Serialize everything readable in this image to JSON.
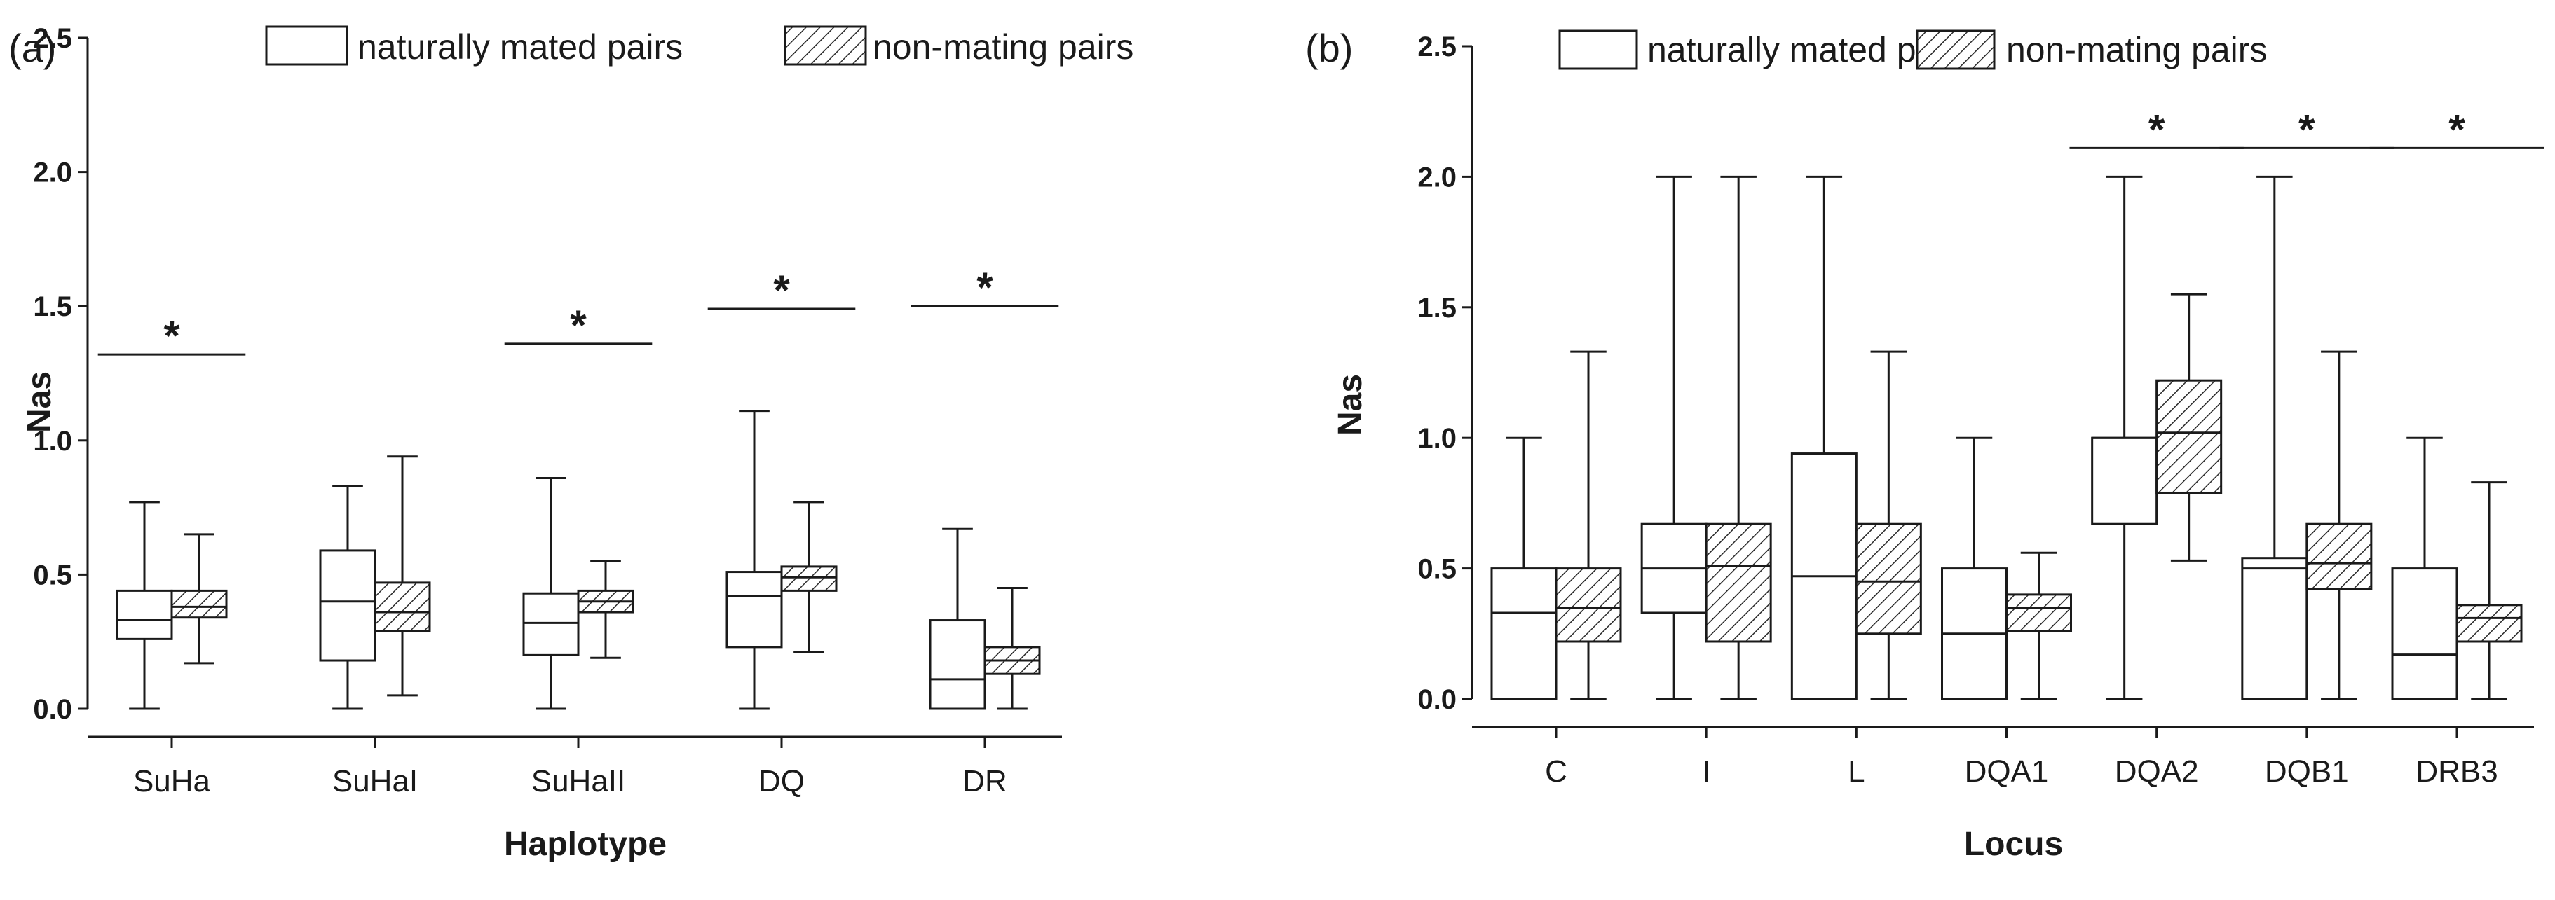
{
  "chart_data": [
    {
      "type": "boxplot",
      "panel_label": "(a)",
      "title": "",
      "xlabel": "Haplotype",
      "ylabel": "Nas",
      "ylim": [
        0,
        2.5
      ],
      "yticks": [
        "0.0",
        "0.5",
        "1.0",
        "1.5",
        "2.0",
        "2.5"
      ],
      "yticks_values": [
        0,
        0.5,
        1.0,
        1.5,
        2.0,
        2.5
      ],
      "legend": [
        "naturally mated pairs",
        "non-mating pairs"
      ],
      "categories": [
        "SuHa",
        "SuHaI",
        "SuHaII",
        "DQ",
        "DR"
      ],
      "series": [
        {
          "name": "naturally mated pairs",
          "pattern": "open",
          "boxes": [
            {
              "min": 0.0,
              "q1": 0.26,
              "median": 0.33,
              "q3": 0.44,
              "max": 0.77
            },
            {
              "min": 0.0,
              "q1": 0.18,
              "median": 0.4,
              "q3": 0.59,
              "max": 0.83
            },
            {
              "min": 0.0,
              "q1": 0.2,
              "median": 0.32,
              "q3": 0.43,
              "max": 0.86
            },
            {
              "min": 0.0,
              "q1": 0.23,
              "median": 0.42,
              "q3": 0.51,
              "max": 1.11
            },
            {
              "min": 0.0,
              "q1": 0.0,
              "median": 0.11,
              "q3": 0.33,
              "max": 0.67
            }
          ]
        },
        {
          "name": "non-mating pairs",
          "pattern": "hatched",
          "boxes": [
            {
              "min": 0.17,
              "q1": 0.34,
              "median": 0.38,
              "q3": 0.44,
              "max": 0.65
            },
            {
              "min": 0.05,
              "q1": 0.29,
              "median": 0.36,
              "q3": 0.47,
              "max": 0.94
            },
            {
              "min": 0.19,
              "q1": 0.36,
              "median": 0.4,
              "q3": 0.44,
              "max": 0.55
            },
            {
              "min": 0.21,
              "q1": 0.44,
              "median": 0.49,
              "q3": 0.53,
              "max": 0.77
            },
            {
              "min": 0.0,
              "q1": 0.13,
              "median": 0.18,
              "q3": 0.23,
              "max": 0.45
            }
          ]
        }
      ],
      "significance": [
        {
          "category": "SuHa",
          "y": 1.32,
          "label": "*"
        },
        {
          "category": "SuHaII",
          "y": 1.36,
          "label": "*"
        },
        {
          "category": "DQ",
          "y": 1.49,
          "label": "*"
        },
        {
          "category": "DR",
          "y": 1.5,
          "label": "*"
        }
      ]
    },
    {
      "type": "boxplot",
      "panel_label": "(b)",
      "title": "",
      "xlabel": "Locus",
      "ylabel": "Nas",
      "ylim": [
        0,
        2.5
      ],
      "yticks": [
        "0.0",
        "0.5",
        "1.0",
        "1.5",
        "2.0",
        "2.5"
      ],
      "yticks_values": [
        0,
        0.5,
        1.0,
        1.5,
        2.0,
        2.5
      ],
      "legend": [
        "naturally mated pairs",
        "non-mating pairs"
      ],
      "categories": [
        "C",
        "I",
        "L",
        "DQA1",
        "DQA2",
        "DQB1",
        "DRB3"
      ],
      "series": [
        {
          "name": "naturally mated pairs",
          "pattern": "open",
          "boxes": [
            {
              "min": 0.0,
              "q1": 0.0,
              "median": 0.33,
              "q3": 0.5,
              "max": 1.0
            },
            {
              "min": 0.0,
              "q1": 0.33,
              "median": 0.5,
              "q3": 0.67,
              "max": 2.0
            },
            {
              "min": 0.0,
              "q1": 0.0,
              "median": 0.47,
              "q3": 0.94,
              "max": 2.0
            },
            {
              "min": 0.0,
              "q1": 0.0,
              "median": 0.25,
              "q3": 0.5,
              "max": 1.0
            },
            {
              "min": 0.0,
              "q1": 0.67,
              "median": 1.0,
              "q3": 1.0,
              "max": 2.0
            },
            {
              "min": 0.0,
              "q1": 0.0,
              "median": 0.5,
              "q3": 0.54,
              "max": 2.0
            },
            {
              "min": 0.0,
              "q1": 0.0,
              "median": 0.17,
              "q3": 0.5,
              "max": 1.0
            }
          ]
        },
        {
          "name": "non-mating pairs",
          "pattern": "hatched",
          "boxes": [
            {
              "min": 0.0,
              "q1": 0.22,
              "median": 0.35,
              "q3": 0.5,
              "max": 1.33
            },
            {
              "min": 0.0,
              "q1": 0.22,
              "median": 0.51,
              "q3": 0.67,
              "max": 2.0
            },
            {
              "min": 0.0,
              "q1": 0.25,
              "median": 0.45,
              "q3": 0.67,
              "max": 1.33
            },
            {
              "min": 0.0,
              "q1": 0.26,
              "median": 0.35,
              "q3": 0.4,
              "max": 0.56
            },
            {
              "min": 0.53,
              "q1": 0.79,
              "median": 1.02,
              "q3": 1.22,
              "max": 1.55
            },
            {
              "min": 0.0,
              "q1": 0.42,
              "median": 0.52,
              "q3": 0.67,
              "max": 1.33
            },
            {
              "min": 0.0,
              "q1": 0.22,
              "median": 0.31,
              "q3": 0.36,
              "max": 0.83
            }
          ]
        }
      ],
      "significance": [
        {
          "category": "DQA2",
          "y": 2.11,
          "label": "*"
        },
        {
          "category": "DQB1",
          "y": 2.11,
          "label": "*"
        },
        {
          "category": "DRB3",
          "y": 2.11,
          "label": "*"
        }
      ]
    }
  ]
}
